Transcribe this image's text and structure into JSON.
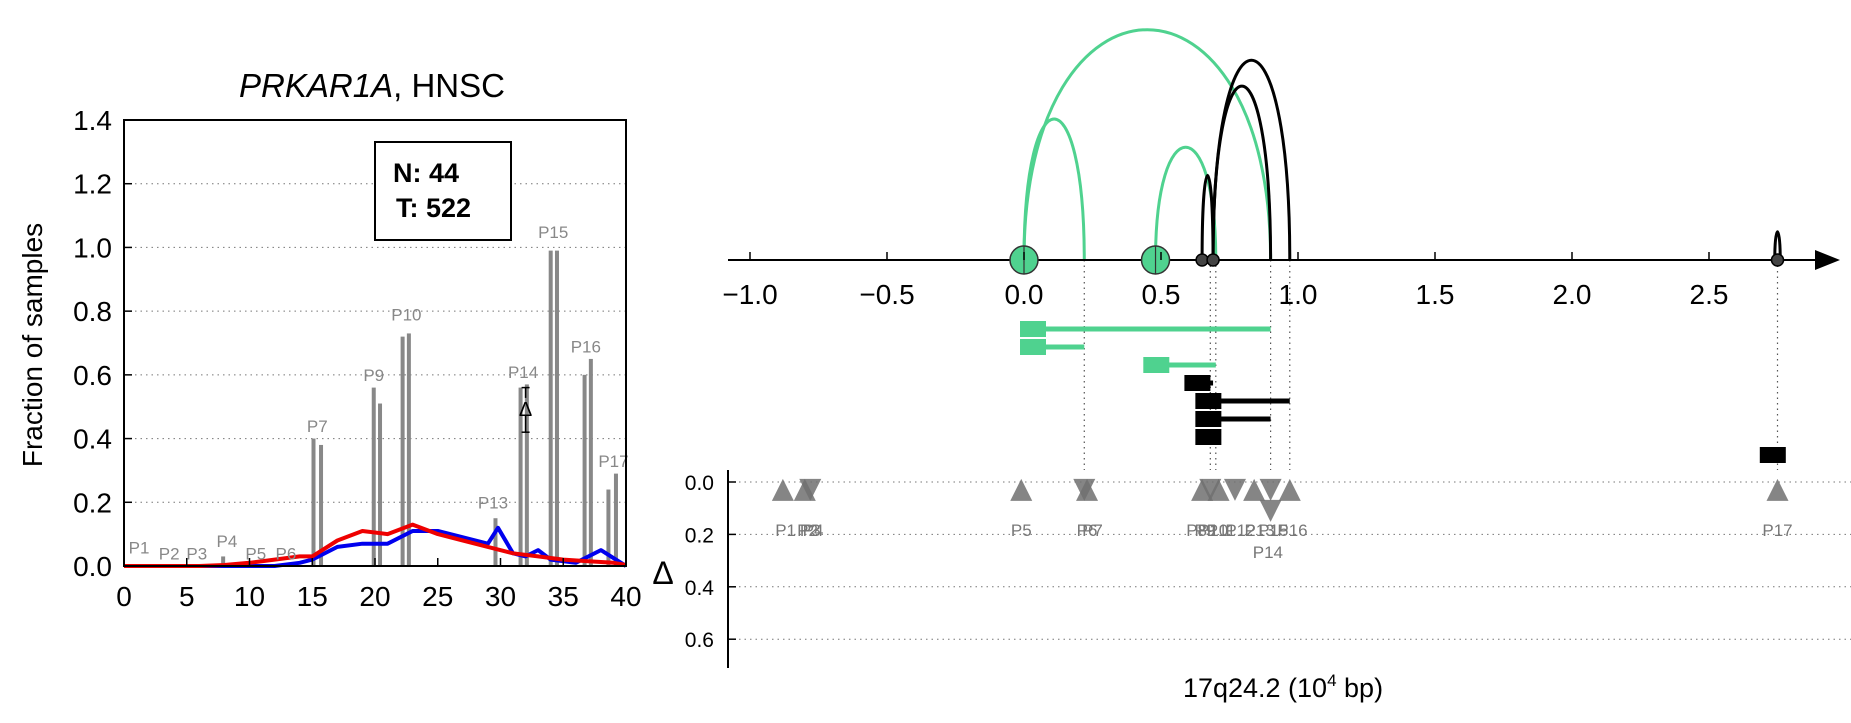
{
  "chart_data": [
    {
      "type": "bar",
      "title_gene": "PRKAR1A",
      "title_rest": ", HNSC",
      "ylabel": "Fraction of samples",
      "xlim": [
        0,
        40
      ],
      "ylim": [
        0,
        1.4
      ],
      "x_ticks": [
        "0",
        "5",
        "10",
        "15",
        "20",
        "25",
        "30",
        "35",
        "40"
      ],
      "y_ticks": [
        "0.0",
        "0.2",
        "0.4",
        "0.6",
        "0.8",
        "1.0",
        "1.2",
        "1.4"
      ],
      "grid": "horizontal dotted",
      "legend_box": {
        "line1": "N: 44",
        "line2": "T: 522",
        "placement": "top-right"
      },
      "bar_color": "#888888",
      "bars": [
        {
          "x": 7.9,
          "y": 0.03
        },
        {
          "x": 15.1,
          "y": 0.4
        },
        {
          "x": 15.7,
          "y": 0.38
        },
        {
          "x": 19.9,
          "y": 0.56
        },
        {
          "x": 20.4,
          "y": 0.51
        },
        {
          "x": 22.2,
          "y": 0.72
        },
        {
          "x": 22.7,
          "y": 0.73
        },
        {
          "x": 29.6,
          "y": 0.15
        },
        {
          "x": 31.6,
          "y": 0.56
        },
        {
          "x": 32.1,
          "y": 0.57
        },
        {
          "x": 34.0,
          "y": 0.99
        },
        {
          "x": 34.5,
          "y": 0.99
        },
        {
          "x": 36.7,
          "y": 0.6
        },
        {
          "x": 37.2,
          "y": 0.65
        },
        {
          "x": 38.6,
          "y": 0.24
        },
        {
          "x": 39.2,
          "y": 0.29
        }
      ],
      "peak_labels": [
        {
          "text": "P1",
          "x": 1.2,
          "y": 0.04
        },
        {
          "text": "P2",
          "x": 3.6,
          "y": 0.02
        },
        {
          "text": "P3",
          "x": 5.8,
          "y": 0.02
        },
        {
          "text": "P4",
          "x": 8.2,
          "y": 0.06
        },
        {
          "text": "P5",
          "x": 10.5,
          "y": 0.02
        },
        {
          "text": "P6",
          "x": 12.9,
          "y": 0.02
        },
        {
          "text": "P7",
          "x": 15.4,
          "y": 0.42
        },
        {
          "text": "P9",
          "x": 19.9,
          "y": 0.58
        },
        {
          "text": "P10",
          "x": 22.5,
          "y": 0.77
        },
        {
          "text": "P13",
          "x": 29.4,
          "y": 0.18
        },
        {
          "text": "P14",
          "x": 31.8,
          "y": 0.59
        },
        {
          "text": "P15",
          "x": 34.2,
          "y": 1.03
        },
        {
          "text": "P16",
          "x": 36.8,
          "y": 0.67
        },
        {
          "text": "P17",
          "x": 39.0,
          "y": 0.31
        }
      ],
      "series": [
        {
          "color": "#0000ee",
          "x": [
            0,
            2,
            4,
            6,
            8,
            10,
            12,
            14,
            15,
            17,
            19,
            21,
            23,
            25,
            27,
            29,
            29.8,
            31,
            32,
            33,
            34,
            36,
            38,
            40
          ],
          "y": [
            0,
            0,
            0,
            0,
            0,
            0,
            0,
            0.01,
            0.02,
            0.06,
            0.07,
            0.07,
            0.11,
            0.11,
            0.09,
            0.07,
            0.12,
            0.04,
            0.03,
            0.05,
            0.02,
            0.01,
            0.05,
            0
          ]
        },
        {
          "color": "#ee0000",
          "x": [
            0,
            2,
            4,
            6,
            8,
            10,
            12,
            14,
            15,
            17,
            19,
            21,
            23,
            25,
            27,
            29,
            31,
            33,
            35,
            37,
            39,
            40
          ],
          "y": [
            0,
            0,
            0,
            0,
            0.003,
            0.01,
            0.02,
            0.03,
            0.03,
            0.08,
            0.11,
            0.1,
            0.13,
            0.1,
            0.08,
            0.06,
            0.04,
            0.03,
            0.02,
            0.015,
            0.01,
            0.003
          ]
        }
      ],
      "delta_marker": {
        "text": "Δ",
        "x": 32.0,
        "y": 0.49,
        "err": [
          0.42,
          0.56
        ]
      }
    },
    {
      "type": "scatter",
      "xlabel": "17q24.2 (10",
      "xlabel_sup": "4",
      "xlabel_end": " bp)",
      "x_ticks": [
        "−1.0",
        "−0.5",
        "0.0",
        "0.5",
        "1.0",
        "1.5",
        "2.0",
        "2.5"
      ],
      "x_tick_values": [
        -1.0,
        -0.5,
        0.0,
        0.5,
        1.0,
        1.5,
        2.0,
        2.5
      ],
      "delta_label": "Δ",
      "delta_ticks": [
        "0.0",
        "0.2",
        "0.4",
        "0.6"
      ],
      "delta_tick_values": [
        0.0,
        0.2,
        0.4,
        0.6
      ],
      "colors": {
        "green": "#4fd28f",
        "black": "#000000",
        "marker": "#707070"
      },
      "arcs": [
        {
          "from": 0.0,
          "to": 0.22,
          "height": 0.6,
          "color": "green"
        },
        {
          "from": 0.0,
          "to": 0.9,
          "height": 0.98,
          "color": "green"
        },
        {
          "from": 0.48,
          "to": 0.7,
          "height": 0.48,
          "color": "green"
        },
        {
          "from": 0.65,
          "to": 0.69,
          "height": 0.36,
          "color": "black"
        },
        {
          "from": 0.69,
          "to": 0.9,
          "height": 0.74,
          "color": "black"
        },
        {
          "from": 0.69,
          "to": 0.97,
          "height": 0.85,
          "color": "black"
        },
        {
          "from": 2.74,
          "to": 2.76,
          "height": 0.12,
          "color": "black"
        }
      ],
      "anchors_big": [
        {
          "x": 0.0
        },
        {
          "x": 0.48
        }
      ],
      "anchors_small": [
        {
          "x": 0.65
        },
        {
          "x": 0.69
        },
        {
          "x": 2.75
        }
      ],
      "segments": [
        {
          "start": 0.0,
          "end": 0.9,
          "color": "green",
          "row": 0
        },
        {
          "start": 0.0,
          "end": 0.22,
          "color": "green",
          "row": 1
        },
        {
          "start": 0.45,
          "end": 0.7,
          "color": "green",
          "row": 2
        },
        {
          "start": 0.6,
          "end": 0.69,
          "color": "black",
          "row": 3
        },
        {
          "start": 0.64,
          "end": 0.97,
          "color": "black",
          "row": 4
        },
        {
          "start": 0.64,
          "end": 0.9,
          "color": "black",
          "row": 5
        },
        {
          "start": 0.64,
          "end": 0.69,
          "color": "black",
          "row": 6
        },
        {
          "start": 2.7,
          "end": 2.76,
          "color": "black",
          "row": 7
        }
      ],
      "vlines": [
        0.22,
        0.68,
        0.7,
        0.9,
        0.97,
        2.75
      ],
      "markers": [
        {
          "x": -0.88,
          "dir": "up",
          "delta": 0.03
        },
        {
          "x": -0.8,
          "dir": "up",
          "delta": 0.03
        },
        {
          "x": -0.78,
          "dir": "down",
          "delta": 0.03
        },
        {
          "x": -0.01,
          "dir": "up",
          "delta": 0.03
        },
        {
          "x": 0.22,
          "dir": "down",
          "delta": 0.03
        },
        {
          "x": 0.23,
          "dir": "up",
          "delta": 0.03
        },
        {
          "x": 0.65,
          "dir": "up",
          "delta": 0.03
        },
        {
          "x": 0.68,
          "dir": "down",
          "delta": 0.03
        },
        {
          "x": 0.71,
          "dir": "up",
          "delta": 0.03
        },
        {
          "x": 0.77,
          "dir": "down",
          "delta": 0.03
        },
        {
          "x": 0.84,
          "dir": "up",
          "delta": 0.03
        },
        {
          "x": 0.9,
          "dir": "down",
          "delta": 0.03
        },
        {
          "x": 0.97,
          "dir": "up",
          "delta": 0.03
        },
        {
          "x": 0.9,
          "dir": "down",
          "delta": 0.11
        },
        {
          "x": 2.75,
          "dir": "up",
          "delta": 0.03
        }
      ],
      "marker_labels": [
        {
          "text": "P1",
          "x": -0.87
        },
        {
          "text": "P2",
          "x": -0.79
        },
        {
          "text": "P3",
          "x": -0.78
        },
        {
          "text": "P4",
          "x": -0.77
        },
        {
          "text": "P5",
          "x": -0.01
        },
        {
          "text": "P6",
          "x": 0.23
        },
        {
          "text": "P7",
          "x": 0.25
        },
        {
          "text": "P8",
          "x": 0.63
        },
        {
          "text": "P9",
          "x": 0.66
        },
        {
          "text": "P10",
          "x": 0.69
        },
        {
          "text": "P11",
          "x": 0.72
        },
        {
          "text": "P12",
          "x": 0.79
        },
        {
          "text": "P13",
          "x": 0.86
        },
        {
          "text": "P15",
          "x": 0.91
        },
        {
          "text": "P16",
          "x": 0.98
        },
        {
          "text": "P14",
          "x": 0.89,
          "low": true
        },
        {
          "text": "P17",
          "x": 2.75
        }
      ]
    }
  ]
}
